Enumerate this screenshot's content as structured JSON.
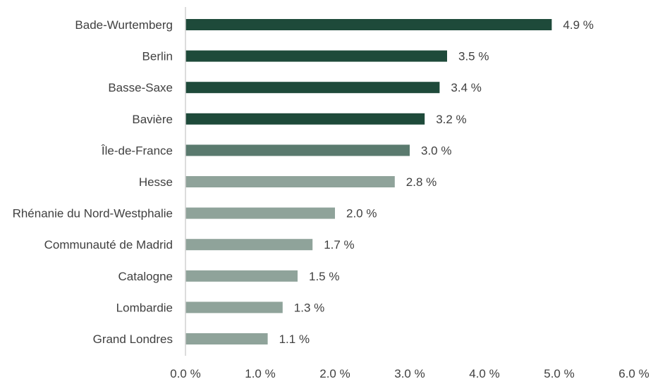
{
  "chart_data": {
    "type": "bar",
    "orientation": "horizontal",
    "categories": [
      "Bade-Wurtemberg",
      "Berlin",
      "Basse-Saxe",
      "Bavière",
      "Île-de-France",
      "Hesse",
      "Rhénanie du Nord-Westphalie",
      "Communauté de Madrid",
      "Catalogne",
      "Lombardie",
      "Grand Londres"
    ],
    "values": [
      4.9,
      3.5,
      3.4,
      3.2,
      3.0,
      2.8,
      2.0,
      1.7,
      1.5,
      1.3,
      1.1
    ],
    "value_labels": [
      "4.9 %",
      "3.5 %",
      "3.4 %",
      "3.2 %",
      "3.0 %",
      "2.8 %",
      "2.0 %",
      "1.7 %",
      "1.5 %",
      "1.3 %",
      "1.1 %"
    ],
    "bar_colors": [
      "#1e4a3a",
      "#1e4a3a",
      "#1e4a3a",
      "#1e4a3a",
      "#5a7a6e",
      "#8fa39a",
      "#8fa39a",
      "#8fa39a",
      "#8fa39a",
      "#8fa39a",
      "#8fa39a"
    ],
    "xlim": [
      0,
      6
    ],
    "xticks": [
      0,
      1,
      2,
      3,
      4,
      5,
      6
    ],
    "xtick_labels": [
      "0.0 %",
      "1.0 %",
      "2.0 %",
      "3.0 %",
      "4.0 %",
      "5.0 %",
      "6.0 %"
    ],
    "title": "",
    "xlabel": "",
    "ylabel": "",
    "grid": false,
    "legend": "none",
    "axis_color": "#d0d0d0"
  }
}
